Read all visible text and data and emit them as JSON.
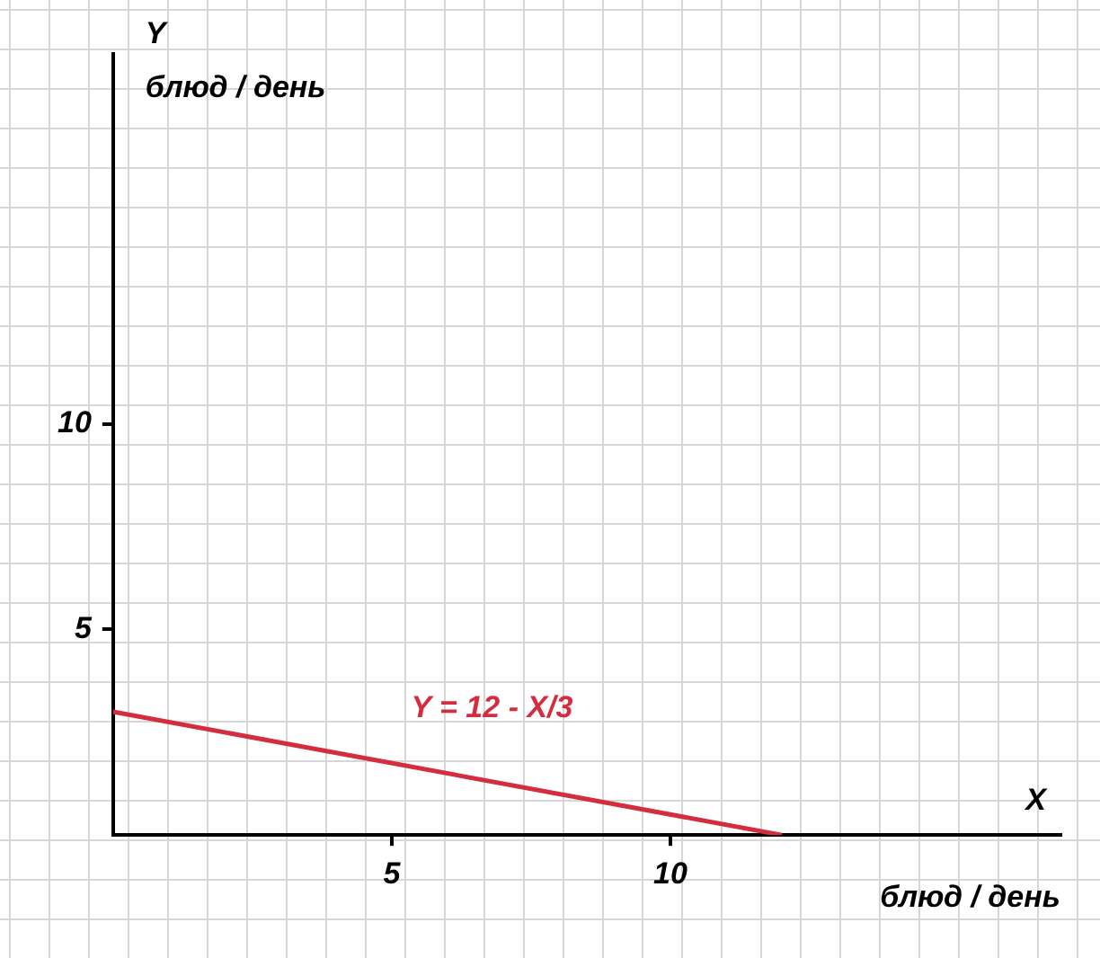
{
  "chart_data": {
    "type": "line",
    "xlabel": "X\nблюд / день",
    "ylabel": "Y\nблюд / день",
    "x": [
      0,
      12
    ],
    "series": [
      {
        "color": "#d42d3f",
        "values": [
          3,
          0
        ]
      }
    ],
    "xlim": [
      0,
      17
    ],
    "ylim": [
      0,
      19
    ],
    "xticks": [
      5,
      10
    ],
    "yticks": [
      5,
      10
    ],
    "grid": false,
    "legend": false,
    "marker": "none",
    "line_style": "solid",
    "annotations": [
      "Y = 12 - X/3"
    ]
  }
}
